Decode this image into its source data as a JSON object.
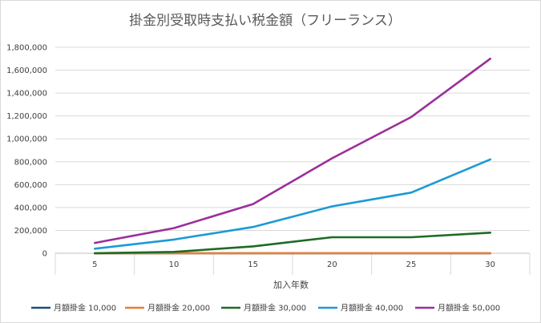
{
  "chart_data": {
    "type": "line",
    "title": "掛金別受取時支払い税金額（フリーランス）",
    "xlabel": "加入年数",
    "ylabel": "",
    "categories": [
      "5",
      "10",
      "15",
      "20",
      "25",
      "30"
    ],
    "ylim": [
      0,
      1800000
    ],
    "yticks": [
      0,
      200000,
      400000,
      600000,
      800000,
      1000000,
      1200000,
      1400000,
      1600000,
      1800000
    ],
    "ytick_labels": [
      "0",
      "200,000",
      "400,000",
      "600,000",
      "800,000",
      "1,000,000",
      "1,200,000",
      "1,400,000",
      "1,600,000",
      "1,800,000"
    ],
    "grid": true,
    "legend_position": "bottom",
    "series": [
      {
        "name": "月額掛金 10,000",
        "color": "#1f4e79",
        "values": [
          0,
          0,
          0,
          0,
          0,
          0
        ]
      },
      {
        "name": "月額掛金 20,000",
        "color": "#ed7d31",
        "values": [
          0,
          0,
          0,
          0,
          0,
          0
        ]
      },
      {
        "name": "月額掛金 30,000",
        "color": "#1e6b24",
        "values": [
          0,
          12000,
          60000,
          140000,
          140000,
          180000
        ]
      },
      {
        "name": "月額掛金 40,000",
        "color": "#1b9ad6",
        "values": [
          40000,
          120000,
          230000,
          410000,
          530000,
          820000
        ]
      },
      {
        "name": "月額掛金 50,000",
        "color": "#9b2e9b",
        "values": [
          90000,
          220000,
          430000,
          830000,
          1190000,
          1700000
        ]
      }
    ]
  }
}
